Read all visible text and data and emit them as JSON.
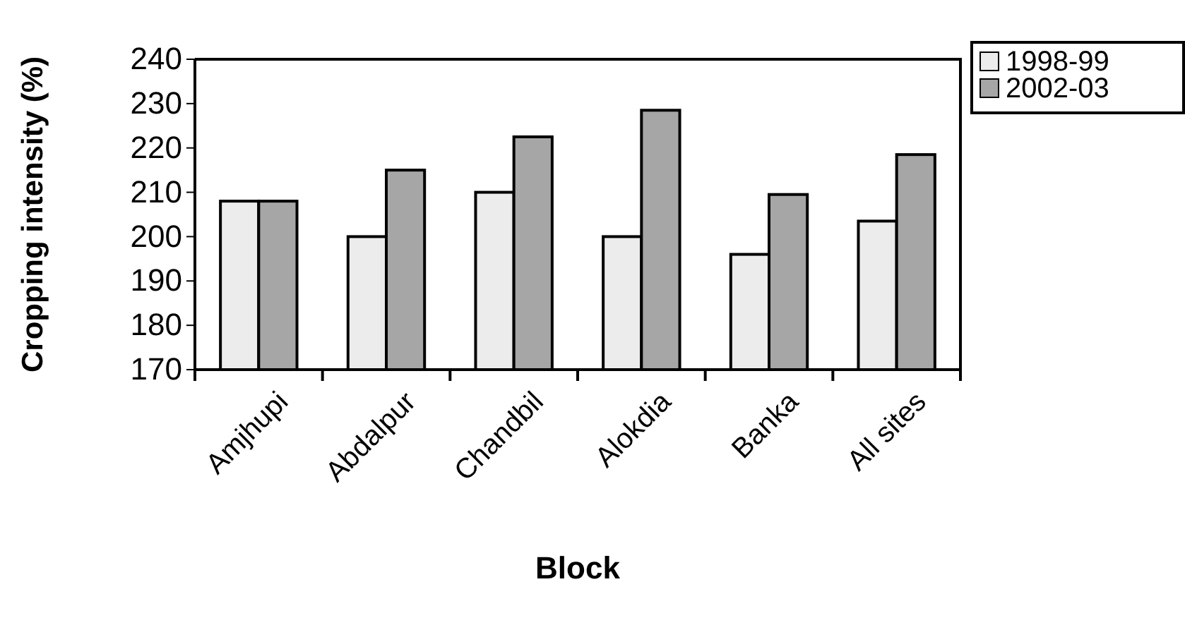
{
  "chart_data": {
    "type": "bar",
    "xlabel": "Block",
    "ylabel": "Cropping intensity (%)",
    "categories": [
      "Amjhupi",
      "Abdalpur",
      "Chandbil",
      "Alokdia",
      "Banka",
      "All sites"
    ],
    "series": [
      {
        "name": "1998-99",
        "color": "#ececec",
        "values": [
          208,
          200,
          210,
          200,
          196,
          203.5
        ]
      },
      {
        "name": "2002-03",
        "color": "#a6a6a6",
        "values": [
          208,
          215,
          222.5,
          228.5,
          209.5,
          218.5
        ]
      }
    ],
    "ylim": [
      170,
      240
    ],
    "yticks": [
      170,
      180,
      190,
      200,
      210,
      220,
      230,
      240
    ],
    "legend": "top right",
    "grid": false
  }
}
